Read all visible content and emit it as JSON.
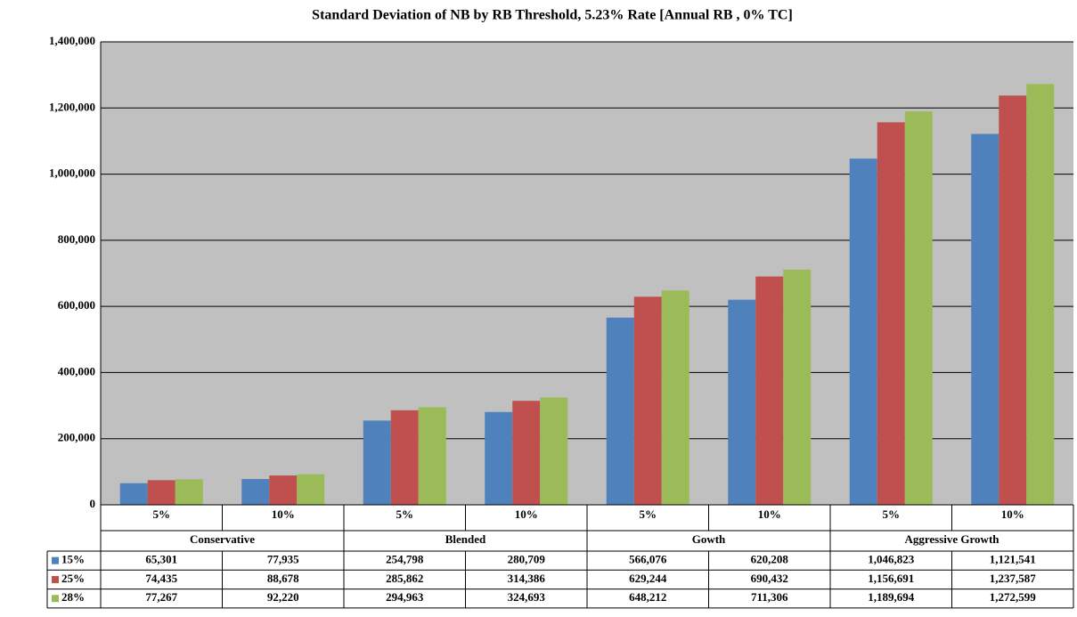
{
  "chart_data": {
    "type": "bar",
    "title": "Standard Deviation of NB by  RB Threshold, 5.23% Rate [Annual RB ,  0% TC]",
    "categories": [
      "5%",
      "10%",
      "5%",
      "10%",
      "5%",
      "10%",
      "5%",
      "10%"
    ],
    "groups": [
      "Conservative",
      "Blended",
      "Gowth",
      "Aggressive Growth"
    ],
    "series": [
      {
        "name": "15%",
        "color": "#4f81bd",
        "values": [
          65301,
          77935,
          254798,
          280709,
          566076,
          620208,
          1046823,
          1121541
        ],
        "value_labels": [
          "65,301",
          "77,935",
          "254,798",
          "280,709",
          "566,076",
          "620,208",
          "1,046,823",
          "1,121,541"
        ]
      },
      {
        "name": "25%",
        "color": "#c0504d",
        "values": [
          74435,
          88678,
          285862,
          314386,
          629244,
          690432,
          1156691,
          1237587
        ],
        "value_labels": [
          "74,435",
          "88,678",
          "285,862",
          "314,386",
          "629,244",
          "690,432",
          "1,156,691",
          "1,237,587"
        ]
      },
      {
        "name": "28%",
        "color": "#9bbb59",
        "values": [
          77267,
          92220,
          294963,
          324693,
          648212,
          711306,
          1189694,
          1272599
        ],
        "value_labels": [
          "77,267",
          "92,220",
          "294,963",
          "324,693",
          "648,212",
          "711,306",
          "1,189,694",
          "1,272,599"
        ]
      }
    ],
    "ylim": [
      0,
      1400000
    ],
    "yticks": [
      0,
      {
        "value": 200000,
        "label": "200,000"
      },
      {
        "value": 400000,
        "label": "400,000"
      },
      {
        "value": 600000,
        "label": "600,000"
      },
      {
        "value": 800000,
        "label": "800,000"
      },
      {
        "value": 1000000,
        "label": "1,000,000"
      },
      {
        "value": 1200000,
        "label": "1,200,000"
      },
      {
        "value": 1400000,
        "label": "1,400,000"
      }
    ],
    "grid": true
  }
}
